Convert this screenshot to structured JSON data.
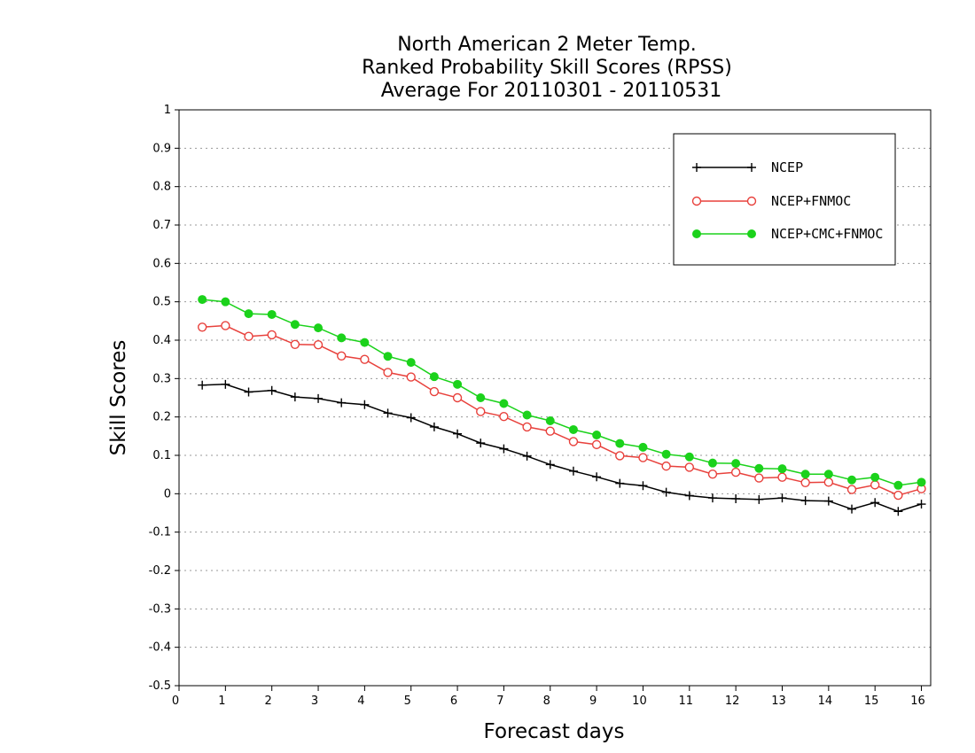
{
  "chart_data": {
    "type": "line",
    "title_lines": [
      "North American 2 Meter Temp.",
      "Ranked Probability Skill Scores (RPSS)",
      "Average For 20110301 - 20110531"
    ],
    "xlabel": "Forecast days",
    "ylabel": "Skill Scores",
    "xlim": [
      0,
      16.2
    ],
    "ylim": [
      -0.5,
      1
    ],
    "x_ticks": [
      0,
      1,
      2,
      3,
      4,
      5,
      6,
      7,
      8,
      9,
      10,
      11,
      12,
      13,
      14,
      15,
      16
    ],
    "y_ticks": [
      -0.5,
      -0.4,
      -0.3,
      -0.2,
      -0.1,
      0,
      0.1,
      0.2,
      0.3,
      0.4,
      0.5,
      0.6,
      0.7,
      0.8,
      0.9,
      1
    ],
    "y_tick_labels": [
      "-0.5",
      "-0.4",
      "-0.3",
      "-0.2",
      "-0.1",
      "0",
      "0.1",
      "0.2",
      "0.3",
      "0.4",
      "0.5",
      "0.6",
      "0.7",
      "0.8",
      "0.9",
      "1"
    ],
    "grid": "horizontal dotted",
    "legend_position": "top-right",
    "x": [
      0.5,
      1,
      1.5,
      2,
      2.5,
      3,
      3.5,
      4,
      4.5,
      5,
      5.5,
      6,
      6.5,
      7,
      7.5,
      8,
      8.5,
      9,
      9.5,
      10,
      10.5,
      11,
      11.5,
      12,
      12.5,
      13,
      13.5,
      14,
      14.5,
      15,
      15.5,
      16
    ],
    "series": [
      {
        "name": "NCEP",
        "color": "#000000",
        "marker": "plus",
        "values": [
          0.283,
          0.285,
          0.265,
          0.269,
          0.252,
          0.248,
          0.237,
          0.232,
          0.21,
          0.198,
          0.174,
          0.156,
          0.132,
          0.117,
          0.098,
          0.076,
          0.059,
          0.044,
          0.027,
          0.021,
          0.004,
          -0.005,
          -0.011,
          -0.013,
          -0.015,
          -0.011,
          -0.018,
          -0.019,
          -0.04,
          -0.023,
          -0.046,
          -0.027
        ]
      },
      {
        "name": "NCEP+FNMOC",
        "color": "#e8413c",
        "marker": "open-circle",
        "values": [
          0.434,
          0.438,
          0.41,
          0.414,
          0.389,
          0.388,
          0.359,
          0.35,
          0.316,
          0.304,
          0.266,
          0.25,
          0.214,
          0.201,
          0.174,
          0.163,
          0.136,
          0.128,
          0.099,
          0.094,
          0.072,
          0.069,
          0.051,
          0.056,
          0.041,
          0.043,
          0.029,
          0.03,
          0.011,
          0.023,
          -0.004,
          0.013
        ]
      },
      {
        "name": "NCEP+CMC+FNMOC",
        "color": "#1bd21b",
        "marker": "filled-circle",
        "values": [
          0.506,
          0.5,
          0.469,
          0.467,
          0.441,
          0.432,
          0.406,
          0.394,
          0.358,
          0.342,
          0.305,
          0.285,
          0.25,
          0.235,
          0.205,
          0.19,
          0.167,
          0.153,
          0.131,
          0.121,
          0.103,
          0.096,
          0.08,
          0.079,
          0.066,
          0.065,
          0.051,
          0.051,
          0.036,
          0.043,
          0.022,
          0.03
        ]
      }
    ]
  }
}
